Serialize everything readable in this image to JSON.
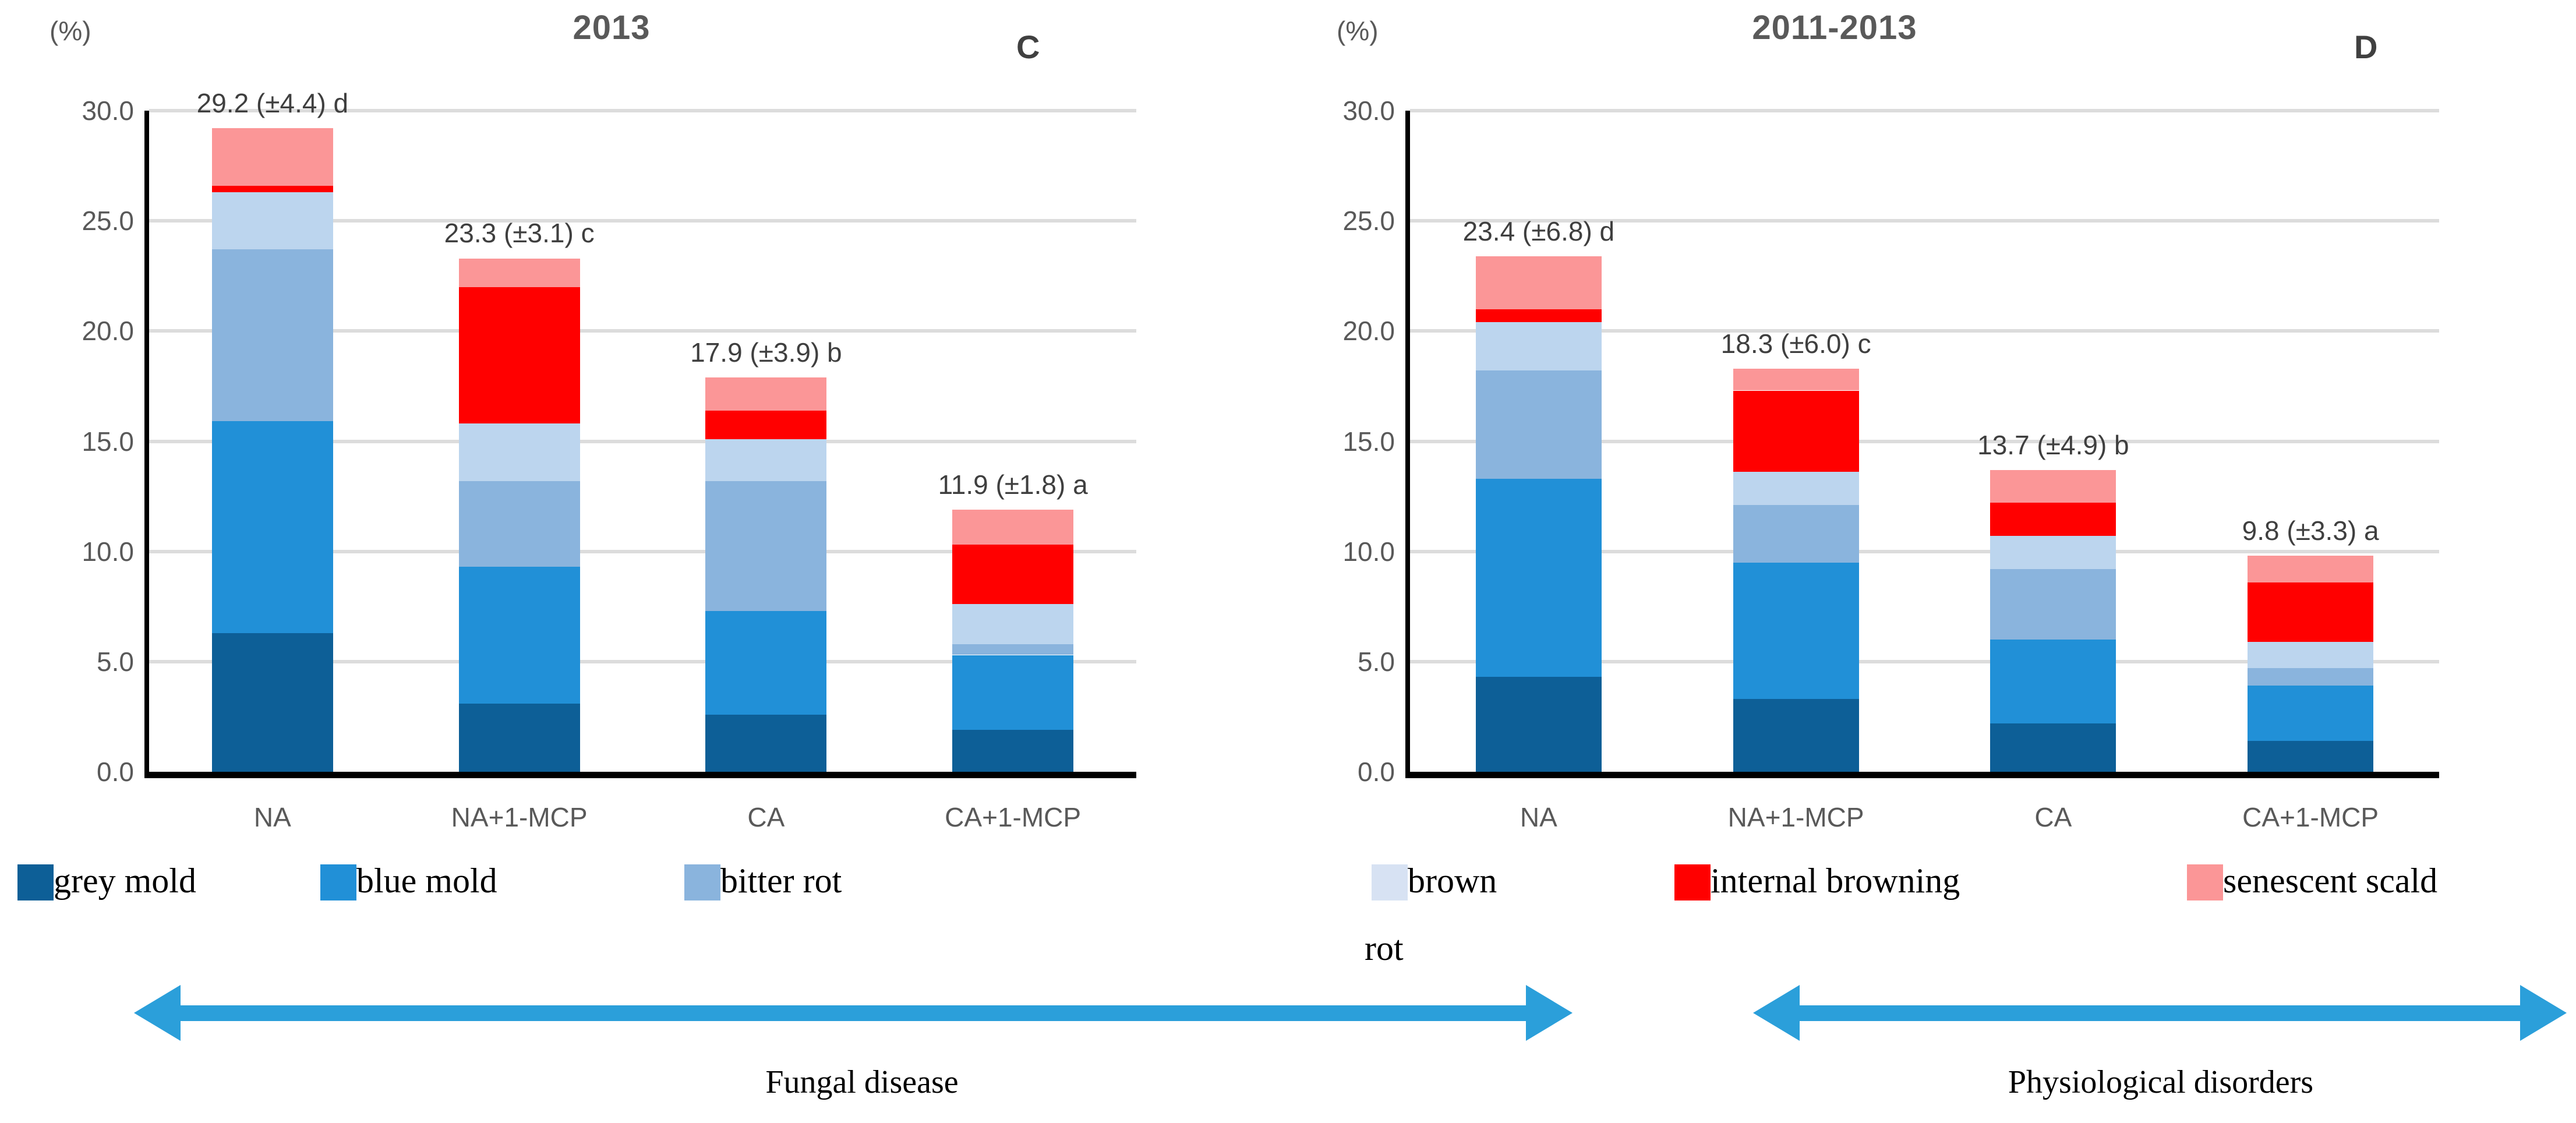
{
  "chart_data": [
    {
      "type": "bar",
      "stacked": true,
      "title": "2013",
      "panel_letter": "C",
      "ylabel": "(%)",
      "ylim": [
        0,
        30
      ],
      "ytick_step": 5,
      "grid": true,
      "legend_position": "bottom",
      "categories": [
        "NA",
        "NA+1-MCP",
        "CA",
        "CA+1-MCP"
      ],
      "totals": [
        29.2,
        23.3,
        17.9,
        11.9
      ],
      "total_labels": [
        "29.2 (±4.4) d",
        "23.3 (±3.1) c",
        "17.9 (±3.9) b",
        "11.9 (±1.8) a"
      ],
      "series": [
        {
          "name": "grey mold",
          "color": "#0D5F97",
          "values": [
            6.3,
            3.1,
            2.6,
            1.9
          ]
        },
        {
          "name": "blue mold",
          "color": "#2190D7",
          "values": [
            9.6,
            6.2,
            4.7,
            3.4
          ]
        },
        {
          "name": "bitter rot",
          "color": "#8AB4DD",
          "values": [
            7.8,
            3.9,
            5.9,
            0.5
          ]
        },
        {
          "name": "brown rot",
          "color": "#BCD5EE",
          "values": [
            2.6,
            2.6,
            1.9,
            1.8
          ]
        },
        {
          "name": "internal browning",
          "color": "#FF0000",
          "values": [
            0.3,
            6.2,
            1.3,
            2.7
          ]
        },
        {
          "name": "senescent scald",
          "color": "#FB9697",
          "values": [
            2.6,
            1.3,
            1.5,
            1.6
          ]
        }
      ]
    },
    {
      "type": "bar",
      "stacked": true,
      "title": "2011-2013",
      "panel_letter": "D",
      "ylabel": "(%)",
      "ylim": [
        0,
        30
      ],
      "ytick_step": 5,
      "grid": true,
      "legend_position": "bottom",
      "categories": [
        "NA",
        "NA+1-MCP",
        "CA",
        "CA+1-MCP"
      ],
      "totals": [
        23.4,
        18.3,
        13.7,
        9.8
      ],
      "total_labels": [
        "23.4 (±6.8) d",
        "18.3 (±6.0) c",
        "13.7 (±4.9) b",
        "9.8 (±3.3) a"
      ],
      "series": [
        {
          "name": "grey mold",
          "color": "#0D5F97",
          "values": [
            4.3,
            3.3,
            2.2,
            1.4
          ]
        },
        {
          "name": "blue mold",
          "color": "#2190D7",
          "values": [
            9.0,
            6.2,
            3.8,
            2.5
          ]
        },
        {
          "name": "bitter rot",
          "color": "#8AB4DD",
          "values": [
            4.9,
            2.6,
            3.2,
            0.8
          ]
        },
        {
          "name": "brown rot",
          "color": "#BCD5EE",
          "values": [
            2.2,
            1.5,
            1.5,
            1.2
          ]
        },
        {
          "name": "internal browning",
          "color": "#FF0000",
          "values": [
            0.6,
            3.7,
            1.5,
            2.7
          ]
        },
        {
          "name": "senescent scald",
          "color": "#FB9697",
          "values": [
            2.4,
            1.0,
            1.5,
            1.2
          ]
        }
      ]
    }
  ],
  "legend": {
    "items": [
      {
        "text": "grey mold",
        "text2": "",
        "color": "#0D5F97"
      },
      {
        "text": "blue mold",
        "text2": "",
        "color": "#2190D7"
      },
      {
        "text": "bitter rot",
        "text2": "",
        "color": "#8AB4DD"
      },
      {
        "text": "brown",
        "text2": "rot",
        "color": "#D7E2F3"
      },
      {
        "text": "internal browning",
        "text2": "",
        "color": "#FF0000"
      },
      {
        "text": "senescent scald",
        "text2": "",
        "color": "#FB9697"
      }
    ]
  },
  "annotations": {
    "arrow_color": "#2B9FDA",
    "fungal": {
      "label": "Fungal disease"
    },
    "physiological": {
      "label": "Physiological disorders"
    }
  }
}
